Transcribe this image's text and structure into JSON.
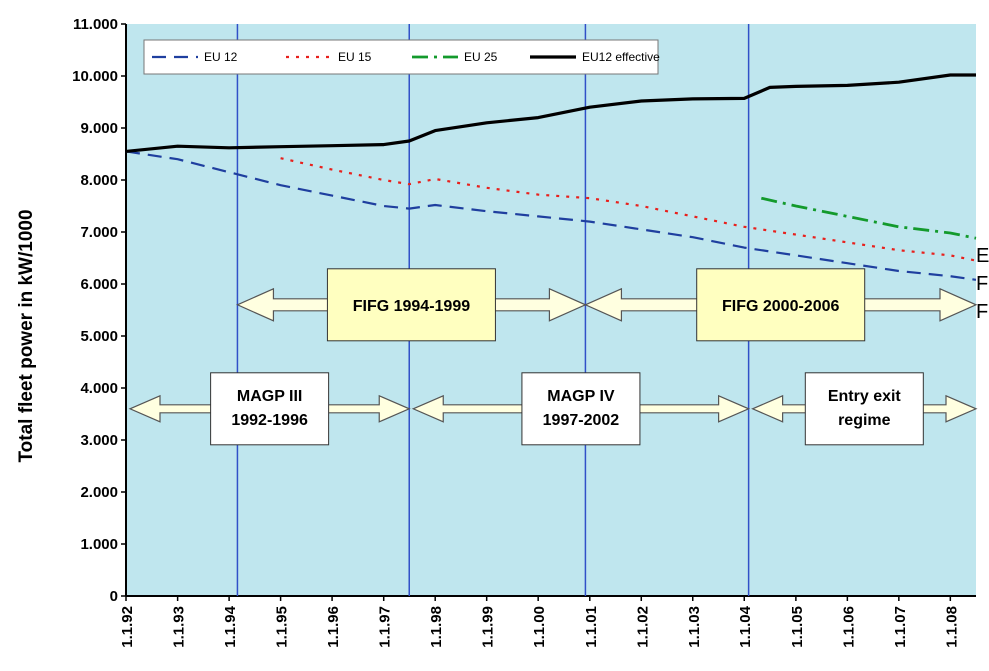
{
  "colors": {
    "plot_bg": "#BFE6EE",
    "eu12": "#1F3F9F",
    "eu15": "#E8201C",
    "eu25": "#139A2C",
    "eu12_effective": "#000000",
    "period_line": "#3050C8",
    "fifg_box": "#FFFFC0",
    "arrow_fill": "#FFFFE0"
  },
  "chart_data": {
    "type": "line",
    "ylabel": "Total fleet power in kW/1000",
    "xlabel": "",
    "y_ticks": [
      "0",
      "1.000",
      "2.000",
      "3.000",
      "4.000",
      "5.000",
      "6.000",
      "7.000",
      "8.000",
      "9.000",
      "10.000",
      "11.000"
    ],
    "ylim": [
      0,
      11000
    ],
    "x_ticks": [
      "1.1.92",
      "1.1.93",
      "1.1.94",
      "1.1.95",
      "1.1.96",
      "1.1.97",
      "1.1.98",
      "1.1.99",
      "1.1.00",
      "1.1.01",
      "1.1.02",
      "1.1.03",
      "1.1.04",
      "1.1.05",
      "1.1.06",
      "1.1.07",
      "1.1.08"
    ],
    "xlim": [
      "1992-01-01",
      "2008-07-01"
    ],
    "grid": false,
    "legend_position": "top-left",
    "series": [
      {
        "name": "EU 12",
        "style": "dashed",
        "x": [
          "1992-01-01",
          "1993-01-01",
          "1994-01-01",
          "1995-01-01",
          "1996-01-01",
          "1997-01-01",
          "1997-07-01",
          "1998-01-01",
          "1999-01-01",
          "2000-01-01",
          "2001-01-01",
          "2002-01-01",
          "2003-01-01",
          "2004-01-01",
          "2005-01-01",
          "2006-01-01",
          "2007-01-01",
          "2008-01-01",
          "2008-07-01"
        ],
        "values": [
          8550,
          8400,
          8150,
          7900,
          7700,
          7500,
          7450,
          7520,
          7400,
          7300,
          7200,
          7050,
          6900,
          6700,
          6550,
          6400,
          6250,
          6150,
          6080
        ]
      },
      {
        "name": "EU 15",
        "style": "dotted",
        "x": [
          "1995-01-01",
          "1996-01-01",
          "1997-01-01",
          "1997-07-01",
          "1998-01-01",
          "1999-01-01",
          "2000-01-01",
          "2001-01-01",
          "2002-01-01",
          "2003-01-01",
          "2004-01-01",
          "2005-01-01",
          "2006-01-01",
          "2007-01-01",
          "2008-01-01",
          "2008-07-01"
        ],
        "values": [
          8420,
          8200,
          8000,
          7920,
          8020,
          7850,
          7720,
          7650,
          7500,
          7300,
          7100,
          6950,
          6800,
          6650,
          6550,
          6450
        ]
      },
      {
        "name": "EU 25",
        "style": "dash-dot",
        "x": [
          "2004-05-01",
          "2005-01-01",
          "2006-01-01",
          "2007-01-01",
          "2008-01-01",
          "2008-07-01"
        ],
        "values": [
          7650,
          7500,
          7300,
          7100,
          6980,
          6880
        ]
      },
      {
        "name": "EU12 effective",
        "style": "solid",
        "x": [
          "1992-01-01",
          "1993-01-01",
          "1994-01-01",
          "1995-01-01",
          "1996-01-01",
          "1997-01-01",
          "1997-07-01",
          "1998-01-01",
          "1999-01-01",
          "2000-01-01",
          "2001-01-01",
          "2002-01-01",
          "2003-01-01",
          "2004-01-01",
          "2004-07-01",
          "2005-01-01",
          "2006-01-01",
          "2007-01-01",
          "2008-01-01",
          "2008-07-01"
        ],
        "values": [
          8550,
          8650,
          8620,
          8640,
          8660,
          8680,
          8750,
          8950,
          9100,
          9200,
          9400,
          9520,
          9560,
          9570,
          9780,
          9800,
          9820,
          9880,
          10020,
          10020
        ]
      }
    ],
    "vertical_lines": [
      "1994-03-01",
      "1997-07-01",
      "2000-12-01",
      "2004-02-01"
    ],
    "annotations": {
      "fifg": [
        {
          "label": "FIFG 1994-1999",
          "from": "1994-03-01",
          "to": "2000-12-01",
          "y": 5600
        },
        {
          "label": "FIFG 2000-2006",
          "from": "2000-12-01",
          "to": "2008-07-01",
          "y": 5600
        }
      ],
      "magp": [
        {
          "lines": [
            "MAGP III",
            "1992-1996"
          ],
          "from": "1992-01-01",
          "to": "1997-07-01",
          "y": 3600
        },
        {
          "lines": [
            "MAGP IV",
            "1997-2002"
          ],
          "from": "1997-07-01",
          "to": "2004-02-01",
          "y": 3600
        },
        {
          "lines": [
            "Entry exit",
            "regime"
          ],
          "from": "2004-02-01",
          "to": "2008-07-01",
          "y": 3600
        }
      ]
    },
    "right_edge_letters": [
      "E",
      "F",
      "F"
    ]
  }
}
